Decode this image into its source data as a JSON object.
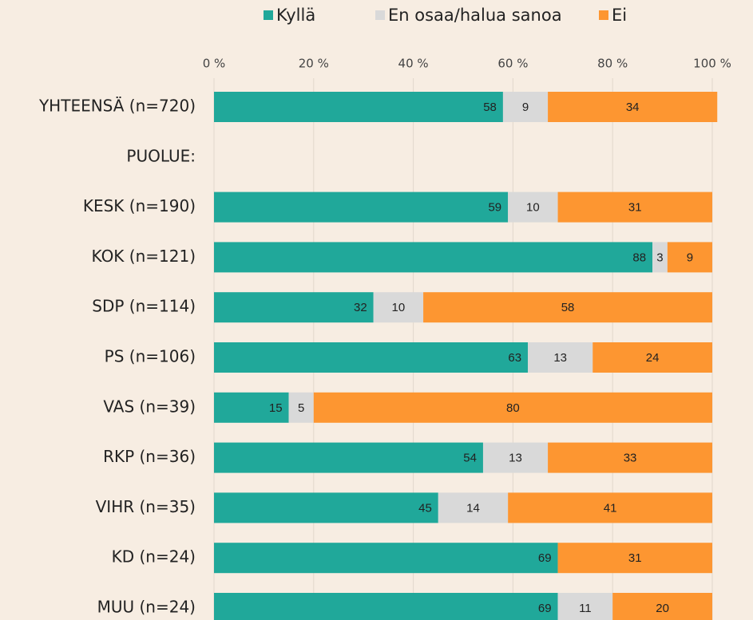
{
  "chart_data": {
    "type": "stacked_barh",
    "categories": [
      "YHTEENSÄ (n=720)",
      "PUOLUE:",
      "KESK (n=190)",
      "KOK (n=121)",
      "SDP (n=114)",
      "PS (n=106)",
      "VAS (n=39)",
      "RKP (n=36)",
      "VIHR (n=35)",
      "KD (n=24)",
      "MUU (n=24)"
    ],
    "series": [
      {
        "name": "Kyllä",
        "color": "#20a89a",
        "values": [
          58,
          null,
          59,
          88,
          32,
          63,
          15,
          54,
          45,
          69,
          69
        ]
      },
      {
        "name": "En osaa/halua sanoa",
        "color": "#d9d9d9",
        "values": [
          9,
          null,
          10,
          3,
          10,
          13,
          5,
          13,
          14,
          null,
          11
        ]
      },
      {
        "name": "Ei",
        "color": "#fd9631",
        "values": [
          34,
          null,
          31,
          9,
          58,
          24,
          80,
          33,
          41,
          31,
          20
        ]
      }
    ],
    "xlim": [
      0,
      100
    ],
    "xticks": [
      {
        "value": 0,
        "label": "0 %"
      },
      {
        "value": 20,
        "label": "20 %"
      },
      {
        "value": 40,
        "label": "40 %"
      },
      {
        "value": 60,
        "label": "60 %"
      },
      {
        "value": 80,
        "label": "80 %"
      },
      {
        "value": 100,
        "label": "100 %"
      }
    ],
    "grid": true,
    "legend": "top"
  }
}
